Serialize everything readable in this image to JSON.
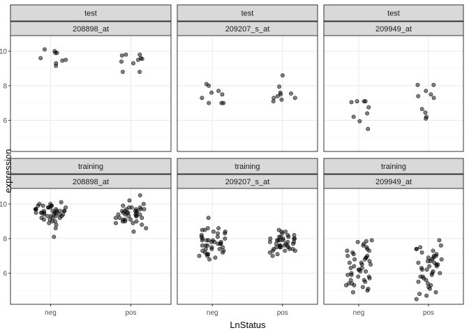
{
  "chart_data": {
    "type": "scatter",
    "xlabel": "LnStatus",
    "ylabel": "expression",
    "categories": [
      "neg",
      "pos"
    ],
    "ylim": [
      4.2,
      10.9
    ],
    "y_ticks": [
      6,
      8,
      10
    ],
    "grid": true,
    "point_color": "#000000",
    "point_opacity": 0.5,
    "panels": [
      {
        "id": "test-208898",
        "rowlabel": "test",
        "collabel": "208898_at",
        "neg": [
          9.9,
          10.1,
          10.0,
          9.5,
          9.3,
          9.15,
          9.6,
          9.45,
          9.9
        ],
        "pos": [
          9.6,
          9.5,
          9.8,
          9.8,
          9.4,
          9.3,
          8.8,
          9.75,
          8.8,
          9.55
        ]
      },
      {
        "id": "test-209207",
        "rowlabel": "test",
        "collabel": "209207_s_at",
        "neg": [
          7.0,
          7.3,
          7.6,
          7.7,
          8.0,
          8.1,
          7.0,
          7.0,
          7.5
        ],
        "pos": [
          7.6,
          7.5,
          7.55,
          7.3,
          7.1,
          7.4,
          7.95,
          8.6,
          7.3,
          7.2
        ]
      },
      {
        "id": "test-209949",
        "rowlabel": "test",
        "collabel": "209949_at",
        "neg": [
          7.1,
          7.05,
          7.1,
          6.75,
          6.4,
          6.2,
          5.95,
          5.5,
          7.1
        ],
        "pos": [
          7.4,
          7.5,
          8.05,
          8.05,
          7.7,
          7.3,
          6.65,
          6.45,
          6.1,
          6.2
        ]
      },
      {
        "id": "training-208898",
        "rowlabel": "training",
        "collabel": "208898_at",
        "neg": [
          9.6,
          9.8,
          9.5,
          9.9,
          10.0,
          9.3,
          9.7,
          9.4,
          9.6,
          9.8,
          9.5,
          9.2,
          9.1,
          9.9,
          10.1,
          9.4,
          9.6,
          9.7,
          9.0,
          8.9,
          9.3,
          8.6,
          9.5,
          9.8,
          9.6,
          9.2,
          9.9,
          9.4,
          8.1,
          9.7,
          9.5,
          9.0,
          9.3,
          9.6,
          8.8,
          9.1,
          9.4,
          9.8,
          10.0,
          9.5,
          9.6,
          9.7,
          9.3,
          9.2,
          9.5,
          9.9
        ],
        "pos": [
          9.7,
          9.4,
          9.9,
          10.2,
          10.5,
          9.6,
          9.2,
          9.0,
          9.8,
          9.5,
          9.3,
          8.9,
          9.1,
          9.6,
          9.7,
          9.4,
          8.6,
          8.4,
          8.8,
          9.0,
          9.2,
          9.5,
          9.8,
          9.6,
          9.3,
          9.7,
          9.1,
          9.4,
          10.0,
          9.5,
          9.2,
          8.9,
          9.6,
          9.3,
          9.8,
          9.4,
          9.0,
          9.7,
          9.5,
          9.1
        ]
      },
      {
        "id": "training-209207",
        "rowlabel": "training",
        "collabel": "209207_s_at",
        "neg": [
          8.6,
          8.5,
          8.4,
          8.3,
          8.1,
          7.9,
          7.8,
          7.7,
          7.6,
          7.5,
          7.4,
          7.3,
          7.2,
          7.1,
          7.0,
          6.9,
          6.8,
          8.2,
          8.0,
          7.9,
          7.6,
          7.4,
          7.7,
          8.3,
          9.2,
          8.5,
          7.8,
          7.3,
          7.0,
          8.1,
          7.5,
          7.9,
          8.4,
          7.2,
          7.6,
          7.8,
          8.0,
          7.4,
          8.6,
          7.1,
          7.7,
          7.9
        ],
        "pos": [
          7.9,
          8.1,
          8.0,
          7.8,
          7.6,
          7.5,
          7.3,
          7.4,
          7.2,
          7.0,
          8.3,
          8.4,
          8.5,
          8.2,
          7.7,
          7.6,
          7.9,
          8.1,
          7.5,
          7.3,
          7.1,
          8.0,
          7.8,
          8.4,
          7.6,
          7.4,
          7.7,
          8.0,
          7.9,
          7.5,
          8.2,
          7.3,
          7.8,
          7.6,
          8.1,
          7.4,
          7.7,
          7.9,
          8.0,
          7.5
        ]
      },
      {
        "id": "training-209949",
        "rowlabel": "training",
        "collabel": "209949_at",
        "neg": [
          7.9,
          7.85,
          7.8,
          7.6,
          7.3,
          7.1,
          6.9,
          6.6,
          6.3,
          6.1,
          5.9,
          5.7,
          5.5,
          5.3,
          5.2,
          4.9,
          7.0,
          6.8,
          6.5,
          6.2,
          5.8,
          5.6,
          5.4,
          6.0,
          6.7,
          7.5,
          7.2,
          6.4,
          5.1,
          6.9,
          7.7,
          5.6,
          6.3,
          5.0,
          7.4,
          6.1,
          5.9,
          6.6,
          7.0,
          5.4,
          6.8,
          5.8,
          6.2,
          7.3,
          5.3,
          6.5
        ],
        "pos": [
          7.9,
          7.5,
          7.4,
          7.2,
          7.0,
          6.9,
          6.8,
          6.7,
          6.6,
          6.4,
          6.2,
          6.0,
          5.9,
          5.7,
          5.5,
          5.3,
          5.1,
          4.9,
          4.7,
          4.5,
          6.8,
          6.5,
          7.1,
          6.3,
          5.8,
          7.3,
          6.0,
          5.6,
          6.7,
          7.6,
          6.1,
          5.4,
          6.9,
          6.4,
          5.2,
          7.0,
          6.6,
          5.8,
          6.2,
          7.4,
          4.8,
          6.5
        ]
      }
    ]
  }
}
